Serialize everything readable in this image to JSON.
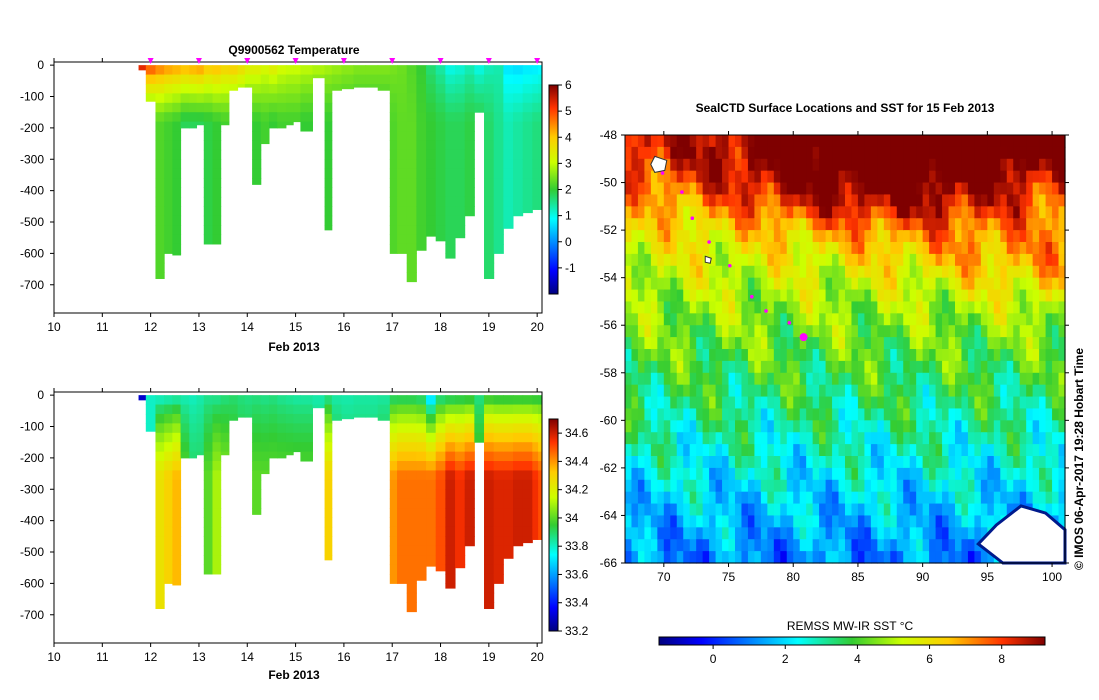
{
  "chart_data": [
    {
      "type": "heatmap",
      "id": "temperature",
      "title": "Q9900562  Temperature",
      "xlabel": "Feb 2013",
      "xlim": [
        10,
        20.1
      ],
      "x_ticks": [
        "10",
        "11",
        "12",
        "13",
        "14",
        "15",
        "16",
        "17",
        "18",
        "19",
        "20"
      ],
      "ylim": [
        -790,
        10
      ],
      "y_ticks": [
        "0",
        "-100",
        "-200",
        "-300",
        "-400",
        "-500",
        "-600",
        "-700"
      ],
      "colorbar": {
        "min": -2,
        "max": 6,
        "ticks": [
          "-1",
          "0",
          "1",
          "2",
          "3",
          "4",
          "5",
          "6"
        ]
      },
      "profile_days": [
        11.75,
        11.9,
        12.1,
        12.28,
        12.45,
        12.62,
        12.8,
        12.95,
        13.1,
        13.28,
        13.45,
        13.62,
        13.8,
        13.95,
        14.1,
        14.28,
        14.45,
        14.62,
        14.8,
        14.95,
        15.1,
        15.35,
        15.6,
        15.75,
        15.95,
        16.2,
        16.45,
        16.7,
        16.95,
        17.1,
        17.3,
        17.5,
        17.7,
        17.9,
        18.1,
        18.3,
        18.5,
        18.7,
        18.9,
        19.1,
        19.3,
        19.5,
        19.7,
        19.9,
        20.02
      ],
      "profile_max_depth": [
        15,
        115,
        680,
        600,
        605,
        200,
        200,
        190,
        570,
        570,
        190,
        80,
        70,
        70,
        380,
        250,
        200,
        200,
        190,
        180,
        210,
        40,
        525,
        80,
        75,
        70,
        70,
        80,
        600,
        600,
        690,
        590,
        545,
        560,
        615,
        550,
        480,
        150,
        680,
        600,
        520,
        480,
        470,
        460,
        460
      ],
      "surface_temps": [
        6,
        5.3,
        4.9,
        4.7,
        4.6,
        4.5,
        4.6,
        4.7,
        4.3,
        4.4,
        4.1,
        4.2,
        3.9,
        3.6,
        3.6,
        3.4,
        3.6,
        3.3,
        3.2,
        3.2,
        3.1,
        3.0,
        2.9,
        2.8,
        2.7,
        2.6,
        2.6,
        2.6,
        2.5,
        2.4,
        2.2,
        2.0,
        1.6,
        1.3,
        0.9,
        1.0,
        1.2,
        0.9,
        1.2,
        1.3,
        0.6,
        0.5,
        0.6,
        0.6,
        0.7
      ],
      "deep_temps": [
        2,
        1.9,
        2.2,
        2.1,
        2.0,
        1.8,
        1.8,
        1.8,
        1.9,
        2.0,
        2.1,
        2.0,
        2.1,
        2.0,
        2.0,
        2.1,
        2.0,
        2.1,
        2.1,
        2.1,
        2.0,
        2.0,
        2.0,
        2.0,
        2.0,
        2.0,
        2.0,
        2.0,
        2.2,
        2.3,
        2.3,
        2.1,
        2.0,
        1.9,
        1.8,
        1.8,
        1.9,
        1.9,
        1.7,
        1.5,
        1.3,
        1.4,
        1.5,
        1.6,
        1.6
      ],
      "marker_days": [
        12,
        13,
        14,
        15,
        16,
        17,
        18,
        19,
        20
      ]
    },
    {
      "type": "heatmap",
      "id": "salinity",
      "title": "",
      "xlabel": "Feb 2013",
      "xlim": [
        10,
        20.1
      ],
      "x_ticks": [
        "10",
        "11",
        "12",
        "13",
        "14",
        "15",
        "16",
        "17",
        "18",
        "19",
        "20"
      ],
      "ylim": [
        -790,
        10
      ],
      "y_ticks": [
        "0",
        "-100",
        "-200",
        "-300",
        "-400",
        "-500",
        "-600",
        "-700"
      ],
      "colorbar": {
        "min": 33.2,
        "max": 34.7,
        "ticks": [
          "33.2",
          "33.4",
          "33.6",
          "33.8",
          "34",
          "34.2",
          "34.4",
          "34.6"
        ]
      },
      "surface_sal": [
        33.3,
        33.8,
        33.75,
        33.76,
        33.77,
        33.8,
        33.8,
        33.82,
        33.84,
        33.83,
        33.86,
        33.88,
        33.87,
        33.86,
        33.86,
        33.85,
        33.86,
        33.84,
        33.83,
        33.82,
        33.82,
        33.82,
        33.82,
        33.82,
        33.82,
        33.83,
        33.83,
        33.83,
        33.84,
        33.84,
        33.84,
        33.82,
        33.6,
        33.8,
        33.82,
        33.84,
        33.85,
        33.86,
        33.87,
        33.86,
        33.86,
        33.86,
        33.86,
        33.86,
        33.86
      ],
      "deep_sal": [
        33.3,
        33.8,
        34.25,
        34.3,
        34.35,
        34.0,
        33.9,
        33.9,
        34.0,
        34.1,
        34.05,
        34.0,
        33.95,
        33.95,
        34.0,
        34.0,
        34.0,
        34.0,
        34.0,
        34.0,
        34.0,
        33.9,
        34.3,
        33.95,
        33.9,
        33.9,
        33.9,
        33.95,
        34.4,
        34.45,
        34.45,
        34.45,
        34.45,
        34.5,
        34.6,
        34.55,
        34.6,
        34.0,
        34.6,
        34.58,
        34.58,
        34.6,
        34.6,
        34.55,
        34.5
      ]
    },
    {
      "type": "heatmap",
      "id": "sst-map",
      "title": "SealCTD Surface Locations and SST for 15 Feb 2013",
      "xlim": [
        67,
        101
      ],
      "ylim": [
        -66,
        -48
      ],
      "x_ticks": [
        "70",
        "75",
        "80",
        "85",
        "90",
        "95",
        "100"
      ],
      "y_ticks": [
        "-48",
        "-50",
        "-52",
        "-54",
        "-56",
        "-58",
        "-60",
        "-62",
        "-64",
        "-66"
      ],
      "colorbar": {
        "label": "REMSS MW-IR SST °C",
        "min": -1.5,
        "max": 9.2,
        "ticks": [
          "0",
          "2",
          "4",
          "6",
          "8"
        ]
      },
      "track": [
        {
          "lon": 69.9,
          "lat": -49.6
        },
        {
          "lon": 71.4,
          "lat": -50.4
        },
        {
          "lon": 72.2,
          "lat": -51.5
        },
        {
          "lon": 73.5,
          "lat": -52.5
        },
        {
          "lon": 75.1,
          "lat": -53.5
        },
        {
          "lon": 76.8,
          "lat": -54.8
        },
        {
          "lon": 77.9,
          "lat": -55.4
        },
        {
          "lon": 79.7,
          "lat": -55.9
        },
        {
          "lon": 80.8,
          "lat": -56.5
        }
      ],
      "latest": {
        "lon": 80.8,
        "lat": -56.5
      }
    }
  ],
  "credit": "© IMOS 06-Apr-2017 19:28 Hobart Time",
  "colors": {
    "track": "#ff00ff",
    "land": "#ffffff",
    "axis": "#000000"
  }
}
